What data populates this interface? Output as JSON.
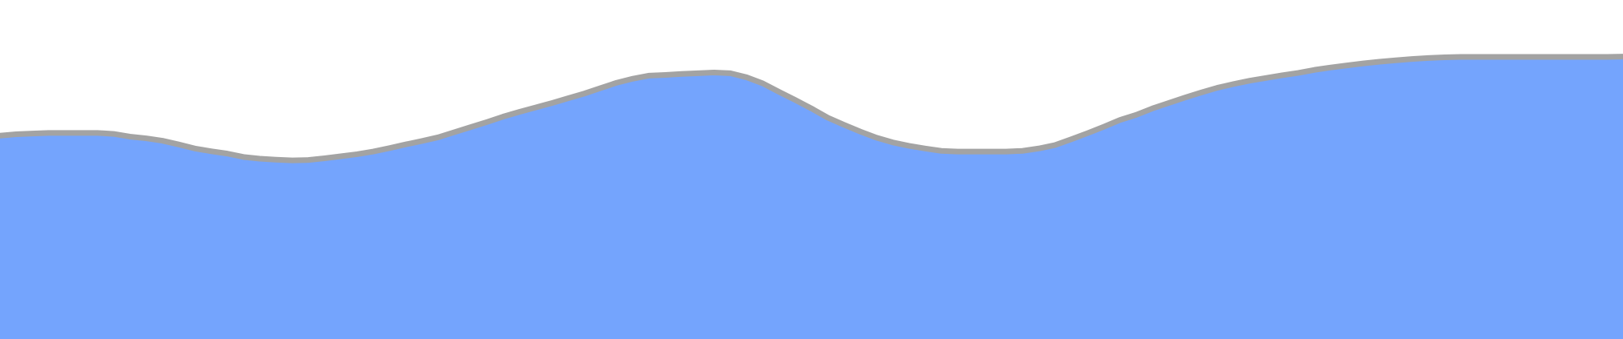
{
  "chart_data": {
    "type": "area",
    "title": "",
    "xlabel": "",
    "ylabel": "",
    "grid": false,
    "legend": "none",
    "colors": {
      "fill": "#74a4fd",
      "stroke": "#a3a3a3",
      "background": "#ffffff"
    },
    "ylim": [
      0,
      100
    ],
    "x": [
      0,
      1,
      2,
      3,
      4,
      5,
      6,
      7,
      8,
      9,
      10,
      11,
      12,
      13,
      14,
      15,
      16,
      17,
      18,
      19,
      20,
      21,
      22,
      23,
      24,
      25,
      26,
      27,
      28,
      29,
      30,
      31,
      32,
      33,
      34,
      35,
      36,
      37,
      38,
      39,
      40,
      41,
      42,
      43,
      44,
      45,
      46,
      47,
      48,
      49,
      50,
      51,
      52,
      53,
      54,
      55,
      56,
      57,
      58,
      59,
      60,
      61,
      62,
      63,
      64,
      65,
      66,
      67,
      68,
      69,
      70,
      71,
      72,
      73,
      74,
      75,
      76,
      77,
      78,
      79,
      80,
      81,
      82,
      83,
      84,
      85,
      86,
      87,
      88,
      89,
      90,
      91,
      92,
      93,
      94,
      95,
      96,
      97,
      98,
      99,
      100
    ],
    "series": [
      {
        "values": [
          60.0,
          60.4,
          60.6,
          60.8,
          60.8,
          60.8,
          60.8,
          60.5,
          59.7,
          59.2,
          58.5,
          57.4,
          56.2,
          55.4,
          54.7,
          53.7,
          53.2,
          52.9,
          52.7,
          52.8,
          53.3,
          53.9,
          54.5,
          55.3,
          56.3,
          57.4,
          58.4,
          59.5,
          61.0,
          62.5,
          64.0,
          65.6,
          67.0,
          68.3,
          69.6,
          71.0,
          72.4,
          74.0,
          75.6,
          76.8,
          77.7,
          77.9,
          78.2,
          78.4,
          78.6,
          78.4,
          77.2,
          75.4,
          72.9,
          70.5,
          68.0,
          65.3,
          63.2,
          61.2,
          59.4,
          58.0,
          57.0,
          56.2,
          55.5,
          55.3,
          55.3,
          55.3,
          55.3,
          55.5,
          56.2,
          57.2,
          58.9,
          60.7,
          62.6,
          64.6,
          66.1,
          68.0,
          69.6,
          71.2,
          72.7,
          74.1,
          75.2,
          76.2,
          77.0,
          77.8,
          78.5,
          79.4,
          80.1,
          80.7,
          81.3,
          81.8,
          82.2,
          82.6,
          82.9,
          83.1,
          83.2,
          83.2,
          83.2,
          83.2,
          83.2,
          83.2,
          83.2,
          83.2,
          83.2,
          83.2,
          83.3
        ]
      }
    ]
  }
}
